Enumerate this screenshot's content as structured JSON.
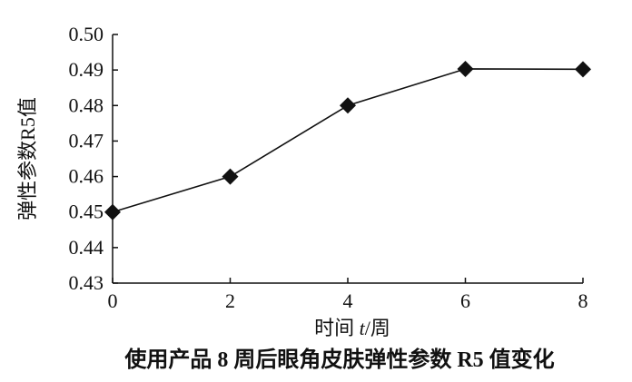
{
  "chart_data": {
    "type": "line",
    "title": "使用产品 8 周后眼角皮肤弹性参数 R5 值变化",
    "xlabel_prefix": "时间 ",
    "xlabel_var": "t",
    "xlabel_suffix": "/周",
    "ylabel": "弹性参数R5值",
    "xlim": [
      0,
      8
    ],
    "ylim": [
      0.43,
      0.5
    ],
    "xticks": [
      0,
      2,
      4,
      6,
      8
    ],
    "yticks": [
      0.43,
      0.44,
      0.45,
      0.46,
      0.47,
      0.48,
      0.49,
      0.5
    ],
    "ytick_labels": [
      "0.43",
      "0.44",
      "0.45",
      "0.46",
      "0.47",
      "0.48",
      "0.49",
      "0.50"
    ],
    "grid": false,
    "marker": "diamond",
    "series": [
      {
        "x": [
          0,
          2,
          4,
          6,
          8
        ],
        "values": [
          0.45,
          0.46,
          0.48,
          0.4903,
          0.4902
        ],
        "color": "#111111"
      }
    ]
  }
}
